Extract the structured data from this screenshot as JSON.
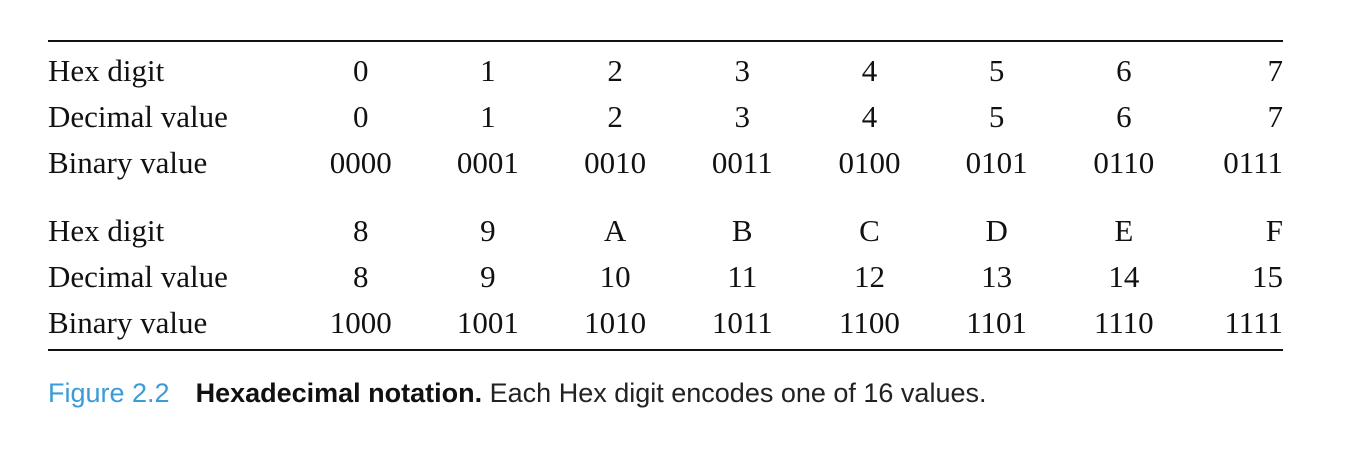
{
  "figure": {
    "number": "Figure 2.2",
    "title": "Hexadecimal notation.",
    "description": " Each Hex digit encodes one of 16 values."
  },
  "table": {
    "groups": [
      {
        "rows": [
          {
            "label": "Hex digit",
            "values": [
              "0",
              "1",
              "2",
              "3",
              "4",
              "5",
              "6",
              "7"
            ]
          },
          {
            "label": "Decimal value",
            "values": [
              "0",
              "1",
              "2",
              "3",
              "4",
              "5",
              "6",
              "7"
            ]
          },
          {
            "label": "Binary value",
            "values": [
              "0000",
              "0001",
              "0010",
              "0011",
              "0100",
              "0101",
              "0110",
              "0111"
            ]
          }
        ]
      },
      {
        "rows": [
          {
            "label": "Hex digit",
            "values": [
              "8",
              "9",
              "A",
              "B",
              "C",
              "D",
              "E",
              "F"
            ]
          },
          {
            "label": "Decimal value",
            "values": [
              "8",
              "9",
              "10",
              "11",
              "12",
              "13",
              "14",
              "15"
            ]
          },
          {
            "label": "Binary value",
            "values": [
              "1000",
              "1001",
              "1010",
              "1011",
              "1100",
              "1101",
              "1110",
              "1111"
            ]
          }
        ]
      }
    ]
  },
  "colors": {
    "figure_number": "#3a9bd6",
    "text": "#111111",
    "rule": "#111111"
  }
}
